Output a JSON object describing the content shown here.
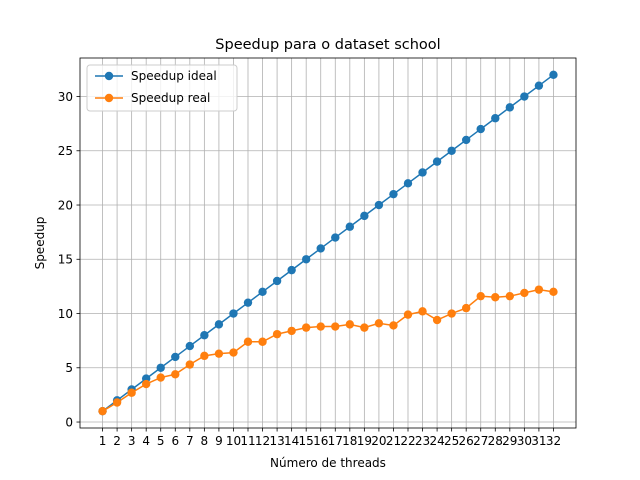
{
  "chart_data": {
    "type": "line",
    "title": "Speedup para o dataset school",
    "xlabel": "Número de threads",
    "ylabel": "Speedup",
    "x": [
      1,
      2,
      3,
      4,
      5,
      6,
      7,
      8,
      9,
      10,
      11,
      12,
      13,
      14,
      15,
      16,
      17,
      18,
      19,
      20,
      21,
      22,
      23,
      24,
      25,
      26,
      27,
      28,
      29,
      30,
      31,
      32
    ],
    "xlim": [
      -0.55,
      33.55
    ],
    "ylim": [
      -0.55,
      33.55
    ],
    "yticks": [
      0,
      5,
      10,
      15,
      20,
      25,
      30
    ],
    "grid": true,
    "legend_position": "top-left",
    "series": [
      {
        "name": "Speedup ideal",
        "color": "#1f77b4",
        "marker": "circle",
        "values": [
          1,
          2,
          3,
          4,
          5,
          6,
          7,
          8,
          9,
          10,
          11,
          12,
          13,
          14,
          15,
          16,
          17,
          18,
          19,
          20,
          21,
          22,
          23,
          24,
          25,
          26,
          27,
          28,
          29,
          30,
          31,
          32
        ]
      },
      {
        "name": "Speedup real",
        "color": "#ff7f0e",
        "marker": "circle",
        "values": [
          1.0,
          1.8,
          2.7,
          3.5,
          4.1,
          4.4,
          5.3,
          6.1,
          6.3,
          6.4,
          7.4,
          7.4,
          8.1,
          8.4,
          8.7,
          8.8,
          8.8,
          9.0,
          8.7,
          9.1,
          8.9,
          9.9,
          10.2,
          9.4,
          10.0,
          10.5,
          11.6,
          11.5,
          11.6,
          11.9,
          12.2,
          12.0
        ]
      }
    ]
  }
}
